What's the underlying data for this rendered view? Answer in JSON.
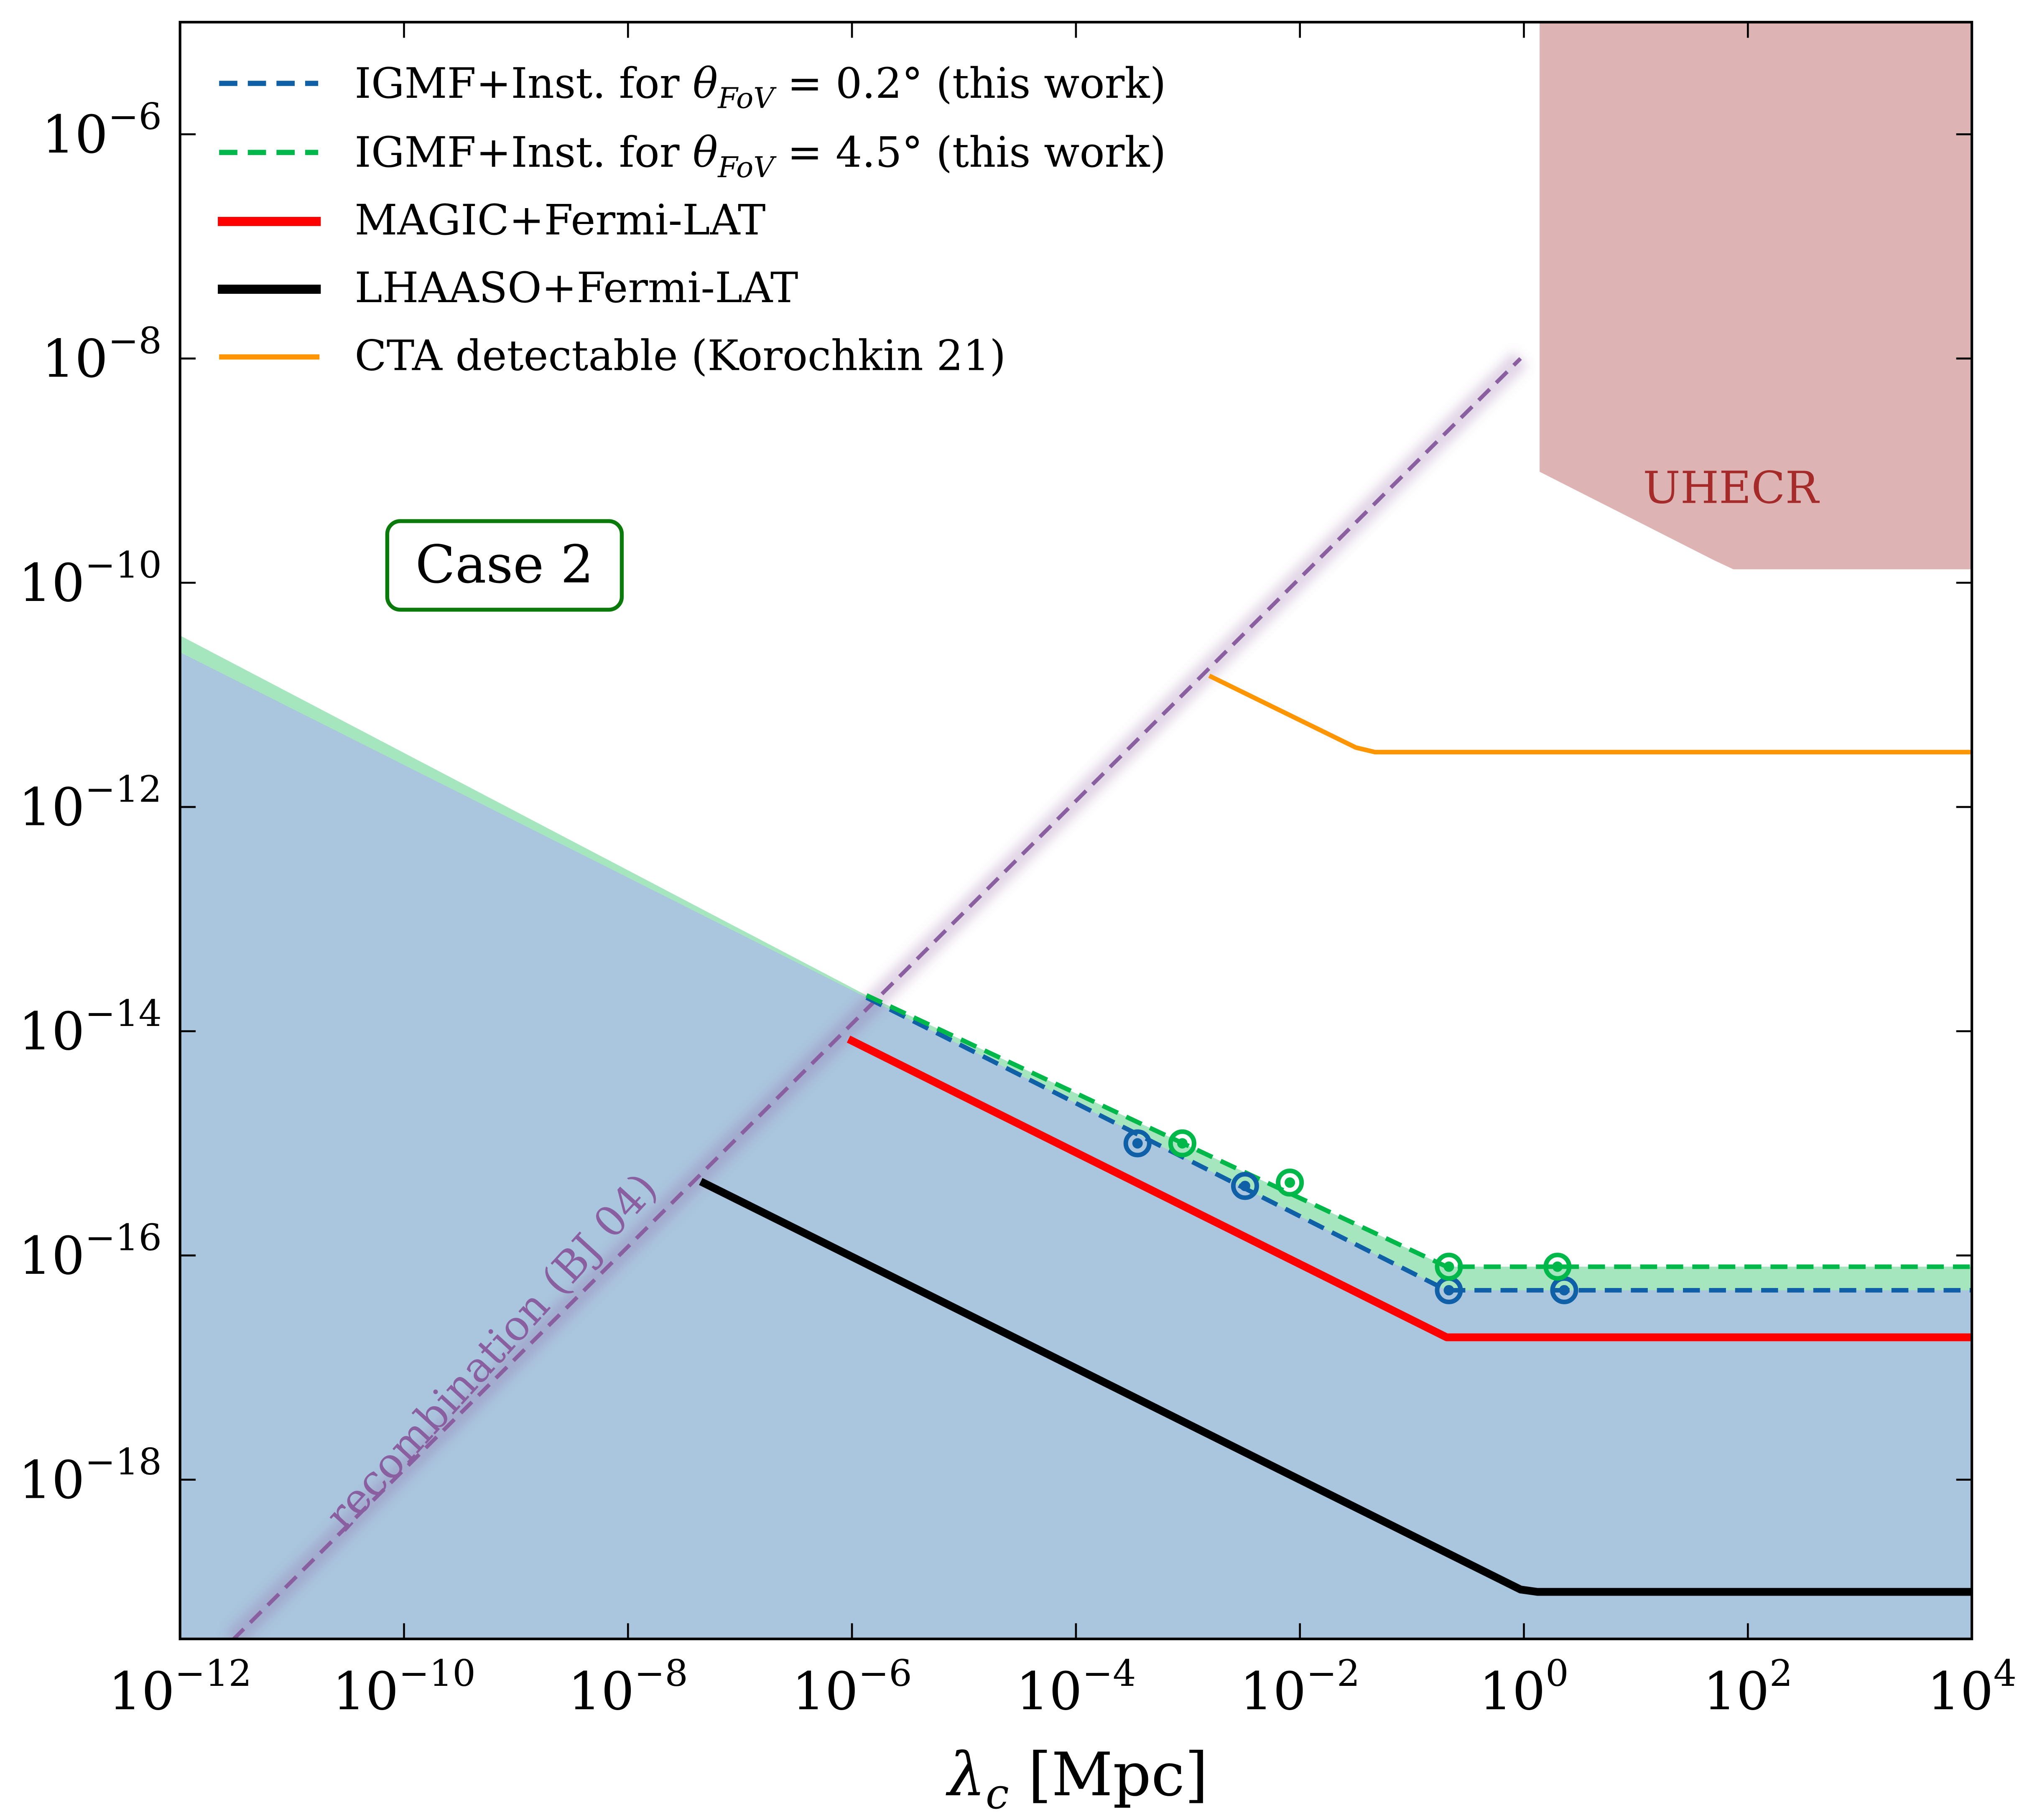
{
  "chart_data": {
    "type": "line",
    "title": "",
    "xlabel": "λ_c [Mpc]",
    "ylabel": "",
    "xscale": "log",
    "yscale": "log",
    "xlim_log10": [
      -12,
      4
    ],
    "ylim_log10": [
      -19.42,
      -5.0
    ],
    "grid": false,
    "legend_placement": "top-left",
    "x_ticks": [
      {
        "base": "10",
        "exp": "−12",
        "log": -12
      },
      {
        "base": "10",
        "exp": "−10",
        "log": -10
      },
      {
        "base": "10",
        "exp": "−8",
        "log": -8
      },
      {
        "base": "10",
        "exp": "−6",
        "log": -6
      },
      {
        "base": "10",
        "exp": "−4",
        "log": -4
      },
      {
        "base": "10",
        "exp": "−2",
        "log": -2
      },
      {
        "base": "10",
        "exp": "0",
        "log": 0
      },
      {
        "base": "10",
        "exp": "2",
        "log": 2
      },
      {
        "base": "10",
        "exp": "4",
        "log": 4
      }
    ],
    "y_ticks": [
      {
        "base": "10",
        "exp": "−6",
        "log": -6
      },
      {
        "base": "10",
        "exp": "−8",
        "log": -8
      },
      {
        "base": "10",
        "exp": "−10",
        "log": -10
      },
      {
        "base": "10",
        "exp": "−12",
        "log": -12
      },
      {
        "base": "10",
        "exp": "−14",
        "log": -14
      },
      {
        "base": "10",
        "exp": "−16",
        "log": -16
      },
      {
        "base": "10",
        "exp": "−18",
        "log": -18
      }
    ],
    "xlabel_parts": {
      "symbol": "λ",
      "sub": "c",
      "unit": " [Mpc]"
    },
    "series": [
      {
        "name": "IGMF+Inst. for θ_FoV = 0.2° (this work)",
        "color": "#1060a8",
        "style": "dashed",
        "log_x": [
          -5.87,
          -0.69,
          4.0
        ],
        "log_y": [
          -13.7,
          -16.31,
          -16.31
        ]
      },
      {
        "name": "IGMF+Inst. for θ_FoV = 4.5° (this work)",
        "color": "#00b84a",
        "style": "dashed",
        "log_x": [
          -5.87,
          -0.69,
          4.0
        ],
        "log_y": [
          -13.68,
          -16.1,
          -16.1
        ]
      },
      {
        "name": "MAGIC+Fermi-LAT",
        "color": "#ff0000",
        "style": "solid",
        "log_x": [
          -6.03,
          -0.69,
          4.0
        ],
        "log_y": [
          -14.07,
          -16.73,
          -16.73
        ]
      },
      {
        "name": "LHAASO+Fermi-LAT",
        "color": "#000000",
        "style": "solid",
        "log_x": [
          -7.35,
          -0.03,
          0.12,
          4.0
        ],
        "log_y": [
          -15.34,
          -18.98,
          -19.0,
          -19.0
        ]
      },
      {
        "name": "CTA detectable (Korochkin 21)",
        "color": "#ff9500",
        "style": "solid",
        "log_x": [
          -2.81,
          -1.5,
          -1.33,
          4.0
        ],
        "log_y": [
          -10.83,
          -11.47,
          -11.51,
          -11.51
        ]
      }
    ],
    "legend": [
      {
        "label_pre": "IGMF+Inst. for ",
        "theta": "θ",
        "sub": "FoV",
        "label_post": " = 0.2° (this work)",
        "color": "#1060a8",
        "style": "dashed"
      },
      {
        "label_pre": "IGMF+Inst. for ",
        "theta": "θ",
        "sub": "FoV",
        "label_post": " = 4.5° (this work)",
        "color": "#00b84a",
        "style": "dashed"
      },
      {
        "label": "MAGIC+Fermi-LAT",
        "color": "#ff0000",
        "style": "solid"
      },
      {
        "label": "LHAASO+Fermi-LAT",
        "color": "#000000",
        "style": "solid"
      },
      {
        "label": "CTA detectable (Korochkin 21)",
        "color": "#ff9500",
        "style": "solid"
      }
    ],
    "markers": {
      "blue": {
        "color": "#1060a8",
        "log_x": [
          -3.45,
          -2.49,
          -0.67,
          0.36
        ],
        "log_y": [
          -15.0,
          -15.38,
          -16.31,
          -16.31
        ]
      },
      "green": {
        "color": "#00b84a",
        "log_x": [
          -3.05,
          -2.09,
          -0.67,
          0.3
        ],
        "log_y": [
          -15.0,
          -15.35,
          -16.1,
          -16.1
        ]
      }
    },
    "excluded_region": {
      "color": "#aac5de",
      "upper_log_x": [
        -12,
        -5.87,
        -0.69,
        4.0
      ],
      "upper_log_y": [
        -10.62,
        -13.7,
        -16.31,
        -16.31
      ]
    },
    "green_band": {
      "color": "#a6e6bf",
      "upper_log_x": [
        -12,
        -5.87,
        -0.69,
        4.0
      ],
      "upper_log_y": [
        -10.47,
        -13.68,
        -16.1,
        -16.1
      ]
    },
    "recombination": {
      "label": "recombination (BJ 04)",
      "color": "#8a5fa0",
      "log_x": [
        -11.53,
        -0.03
      ],
      "log_y": [
        -19.43,
        -8.0
      ]
    },
    "uhecr": {
      "label": "UHECR",
      "fill": "#ddb3b3",
      "text_color": "#a52a2a",
      "log_x": [
        0.14,
        4.0,
        4.0,
        1.87,
        1.7,
        0.14
      ],
      "log_y": [
        -5.0,
        -5.0,
        -9.88,
        -9.88,
        -9.8,
        -9.01
      ]
    },
    "annotations": [
      {
        "text": "Case 2",
        "border_color": "#0a7a0a"
      }
    ]
  }
}
